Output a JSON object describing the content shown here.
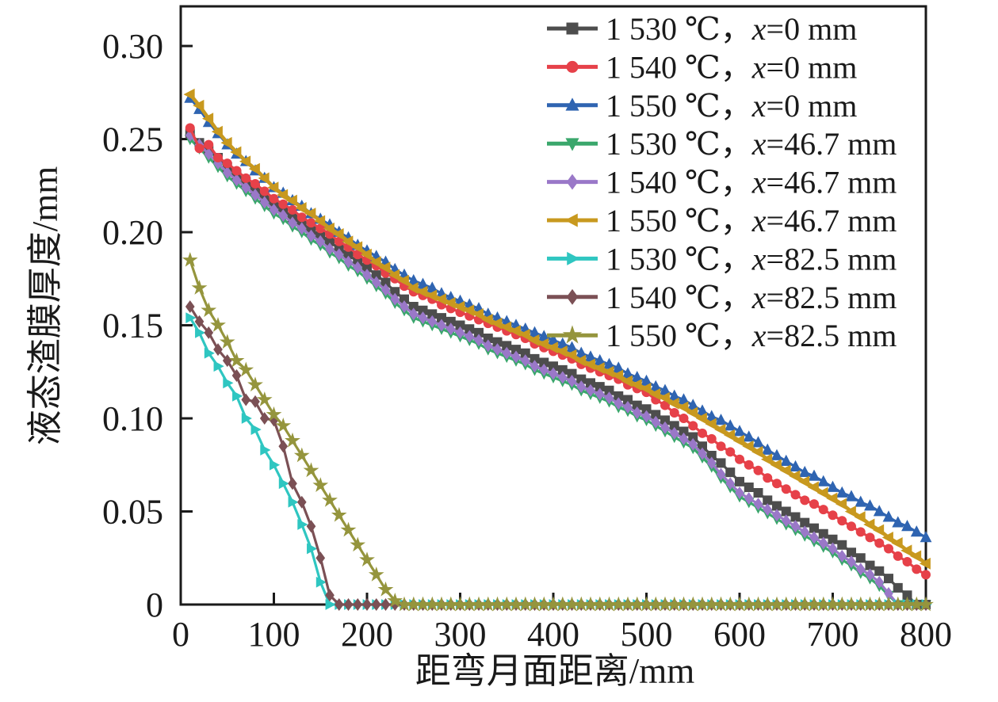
{
  "chart_data": {
    "type": "line",
    "title": "",
    "xlabel": "距弯月面距离/mm",
    "ylabel": "液态渣膜厚度/mm",
    "xlim": [
      0,
      800
    ],
    "ylim": [
      0,
      0.3213
    ],
    "grid": false,
    "legend_position": "top-right-inside",
    "axis_color": "#1a1a1a",
    "x_tick_values": [
      0,
      100,
      200,
      300,
      400,
      500,
      600,
      700,
      800
    ],
    "x_tick_labels": [
      "0",
      "100",
      "200",
      "300",
      "400",
      "500",
      "600",
      "700",
      "800"
    ],
    "y_tick_values": [
      0,
      0.05,
      0.1,
      0.15,
      0.2,
      0.25,
      0.3
    ],
    "y_tick_labels": [
      "0",
      "0.05",
      "0.10",
      "0.15",
      "0.20",
      "0.25",
      "0.30"
    ],
    "x_start": 10,
    "x_step": 10,
    "series": [
      {
        "name": "1 530 ℃，x=0 mm",
        "color": "#4d4d4d",
        "marker": "square",
        "values": [
          0.253,
          0.248,
          0.244,
          0.24,
          0.235,
          0.231,
          0.227,
          0.223,
          0.219,
          0.215,
          0.212,
          0.208,
          0.205,
          0.201,
          0.198,
          0.195,
          0.191,
          0.188,
          0.184,
          0.181,
          0.177,
          0.173,
          0.168,
          0.164,
          0.16,
          0.158,
          0.156,
          0.154,
          0.152,
          0.15,
          0.148,
          0.146,
          0.143,
          0.141,
          0.139,
          0.137,
          0.135,
          0.132,
          0.13,
          0.128,
          0.126,
          0.124,
          0.121,
          0.119,
          0.117,
          0.115,
          0.112,
          0.11,
          0.107,
          0.105,
          0.102,
          0.099,
          0.096,
          0.093,
          0.09,
          0.085,
          0.08,
          0.076,
          0.071,
          0.066,
          0.063,
          0.06,
          0.056,
          0.053,
          0.05,
          0.047,
          0.044,
          0.041,
          0.038,
          0.035,
          0.032,
          0.028,
          0.025,
          0.021,
          0.018,
          0.014,
          0.009,
          0.005,
          0,
          0
        ]
      },
      {
        "name": "1 540 ℃，x=0 mm",
        "color": "#e64149",
        "marker": "circle",
        "values": [
          0.256,
          0.245,
          0.247,
          0.24,
          0.237,
          0.233,
          0.229,
          0.226,
          0.222,
          0.218,
          0.215,
          0.212,
          0.208,
          0.205,
          0.202,
          0.199,
          0.195,
          0.192,
          0.188,
          0.185,
          0.182,
          0.178,
          0.175,
          0.171,
          0.168,
          0.166,
          0.164,
          0.161,
          0.159,
          0.157,
          0.155,
          0.153,
          0.151,
          0.149,
          0.147,
          0.145,
          0.143,
          0.14,
          0.138,
          0.136,
          0.134,
          0.132,
          0.129,
          0.127,
          0.125,
          0.123,
          0.121,
          0.118,
          0.116,
          0.114,
          0.11,
          0.107,
          0.103,
          0.1,
          0.096,
          0.092,
          0.089,
          0.085,
          0.082,
          0.078,
          0.075,
          0.072,
          0.068,
          0.065,
          0.062,
          0.059,
          0.056,
          0.054,
          0.051,
          0.048,
          0.045,
          0.042,
          0.039,
          0.036,
          0.033,
          0.03,
          0.026,
          0.023,
          0.019,
          0.016
        ]
      },
      {
        "name": "1 550 ℃，x=0 mm",
        "color": "#2f64b1",
        "marker": "triangle-up",
        "values": [
          0.272,
          0.266,
          0.259,
          0.253,
          0.247,
          0.242,
          0.238,
          0.233,
          0.229,
          0.224,
          0.221,
          0.217,
          0.214,
          0.21,
          0.207,
          0.204,
          0.2,
          0.197,
          0.193,
          0.19,
          0.187,
          0.184,
          0.18,
          0.177,
          0.174,
          0.172,
          0.17,
          0.167,
          0.165,
          0.163,
          0.161,
          0.159,
          0.156,
          0.154,
          0.152,
          0.15,
          0.148,
          0.146,
          0.144,
          0.142,
          0.14,
          0.138,
          0.135,
          0.133,
          0.131,
          0.129,
          0.127,
          0.124,
          0.122,
          0.12,
          0.117,
          0.115,
          0.112,
          0.11,
          0.107,
          0.104,
          0.101,
          0.099,
          0.096,
          0.093,
          0.09,
          0.087,
          0.083,
          0.08,
          0.077,
          0.074,
          0.071,
          0.069,
          0.066,
          0.063,
          0.06,
          0.058,
          0.055,
          0.053,
          0.05,
          0.047,
          0.044,
          0.042,
          0.039,
          0.036
        ]
      },
      {
        "name": "1 530 ℃，x=46.7 mm",
        "color": "#3aa76c",
        "marker": "triangle-down",
        "values": [
          0.25,
          0.245,
          0.24,
          0.235,
          0.23,
          0.226,
          0.222,
          0.218,
          0.214,
          0.21,
          0.207,
          0.203,
          0.2,
          0.196,
          0.193,
          0.189,
          0.186,
          0.182,
          0.179,
          0.175,
          0.171,
          0.167,
          0.162,
          0.158,
          0.154,
          0.152,
          0.15,
          0.148,
          0.146,
          0.144,
          0.142,
          0.14,
          0.137,
          0.135,
          0.133,
          0.131,
          0.129,
          0.126,
          0.124,
          0.122,
          0.12,
          0.118,
          0.115,
          0.113,
          0.111,
          0.109,
          0.106,
          0.104,
          0.101,
          0.099,
          0.096,
          0.093,
          0.09,
          0.087,
          0.084,
          0.079,
          0.074,
          0.068,
          0.063,
          0.058,
          0.055,
          0.052,
          0.049,
          0.046,
          0.043,
          0.04,
          0.037,
          0.034,
          0.031,
          0.028,
          0.024,
          0.021,
          0.017,
          0.014,
          0.01,
          0.005,
          0,
          0,
          0,
          0
        ]
      },
      {
        "name": "1 540 ℃，x=46.7 mm",
        "color": "#9a78c8",
        "marker": "diamond",
        "values": [
          0.252,
          0.247,
          0.242,
          0.237,
          0.232,
          0.228,
          0.224,
          0.22,
          0.216,
          0.212,
          0.209,
          0.205,
          0.202,
          0.198,
          0.195,
          0.191,
          0.188,
          0.184,
          0.181,
          0.177,
          0.173,
          0.169,
          0.164,
          0.16,
          0.156,
          0.154,
          0.152,
          0.15,
          0.148,
          0.146,
          0.144,
          0.142,
          0.139,
          0.137,
          0.135,
          0.133,
          0.131,
          0.128,
          0.126,
          0.124,
          0.122,
          0.12,
          0.117,
          0.115,
          0.113,
          0.111,
          0.108,
          0.106,
          0.103,
          0.101,
          0.098,
          0.095,
          0.092,
          0.089,
          0.086,
          0.081,
          0.076,
          0.07,
          0.065,
          0.06,
          0.057,
          0.054,
          0.051,
          0.048,
          0.045,
          0.042,
          0.039,
          0.036,
          0.033,
          0.03,
          0.026,
          0.023,
          0.019,
          0.016,
          0.012,
          0.006,
          0,
          0,
          0,
          0
        ]
      },
      {
        "name": "1 550 ℃，x=46.7 mm",
        "color": "#c8991f",
        "marker": "triangle-left",
        "values": [
          0.274,
          0.268,
          0.261,
          0.254,
          0.248,
          0.243,
          0.238,
          0.234,
          0.229,
          0.224,
          0.22,
          0.217,
          0.213,
          0.21,
          0.206,
          0.202,
          0.199,
          0.195,
          0.192,
          0.188,
          0.184,
          0.181,
          0.177,
          0.174,
          0.17,
          0.168,
          0.166,
          0.164,
          0.162,
          0.16,
          0.158,
          0.156,
          0.153,
          0.151,
          0.149,
          0.147,
          0.145,
          0.142,
          0.14,
          0.138,
          0.136,
          0.134,
          0.131,
          0.129,
          0.127,
          0.125,
          0.123,
          0.12,
          0.118,
          0.116,
          0.113,
          0.111,
          0.108,
          0.106,
          0.103,
          0.1,
          0.097,
          0.094,
          0.091,
          0.088,
          0.085,
          0.082,
          0.078,
          0.075,
          0.072,
          0.069,
          0.066,
          0.063,
          0.06,
          0.057,
          0.054,
          0.05,
          0.047,
          0.043,
          0.04,
          0.036,
          0.033,
          0.029,
          0.026,
          0.022
        ]
      },
      {
        "name": "1 530 ℃，x=82.5 mm",
        "color": "#2fc6c1",
        "marker": "triangle-right",
        "values": [
          0.154,
          0.146,
          0.135,
          0.128,
          0.119,
          0.112,
          0.1,
          0.094,
          0.083,
          0.075,
          0.065,
          0.055,
          0.043,
          0.03,
          0.012,
          0,
          0,
          0,
          0,
          0,
          0,
          0,
          0,
          0,
          0,
          0,
          0,
          0,
          0,
          0,
          0,
          0,
          0,
          0,
          0,
          0,
          0,
          0,
          0,
          0,
          0,
          0,
          0,
          0,
          0,
          0,
          0,
          0,
          0,
          0,
          0,
          0,
          0,
          0,
          0,
          0,
          0,
          0,
          0,
          0,
          0,
          0,
          0,
          0,
          0,
          0,
          0,
          0,
          0,
          0,
          0,
          0,
          0,
          0,
          0,
          0,
          0,
          0,
          0,
          0
        ]
      },
      {
        "name": "1 540 ℃，x=82.5 mm",
        "color": "#7b5055",
        "marker": "diamond",
        "values": [
          0.16,
          0.152,
          0.146,
          0.137,
          0.131,
          0.123,
          0.11,
          0.109,
          0.1,
          0.099,
          0.085,
          0.065,
          0.055,
          0.042,
          0.025,
          0.005,
          0,
          0,
          0,
          0,
          0,
          0,
          0,
          0,
          0,
          0,
          0,
          0,
          0,
          0,
          0,
          0,
          0,
          0,
          0,
          0,
          0,
          0,
          0,
          0,
          0,
          0,
          0,
          0,
          0,
          0,
          0,
          0,
          0,
          0,
          0,
          0,
          0,
          0,
          0,
          0,
          0,
          0,
          0,
          0,
          0,
          0,
          0,
          0,
          0,
          0,
          0,
          0,
          0,
          0,
          0,
          0,
          0,
          0,
          0,
          0,
          0,
          0,
          0,
          0
        ]
      },
      {
        "name": "1 550 ℃，x=82.5 mm",
        "color": "#95953d",
        "marker": "star",
        "values": [
          0.185,
          0.17,
          0.158,
          0.15,
          0.141,
          0.131,
          0.126,
          0.118,
          0.11,
          0.102,
          0.096,
          0.088,
          0.08,
          0.072,
          0.064,
          0.056,
          0.048,
          0.04,
          0.032,
          0.024,
          0.016,
          0.008,
          0.002,
          0,
          0,
          0,
          0,
          0,
          0,
          0,
          0,
          0,
          0,
          0,
          0,
          0,
          0,
          0,
          0,
          0,
          0,
          0,
          0,
          0,
          0,
          0,
          0,
          0,
          0,
          0,
          0,
          0,
          0,
          0,
          0,
          0,
          0,
          0,
          0,
          0,
          0,
          0,
          0,
          0,
          0,
          0,
          0,
          0,
          0,
          0,
          0,
          0,
          0,
          0,
          0,
          0,
          0,
          0,
          0,
          0
        ]
      }
    ]
  }
}
